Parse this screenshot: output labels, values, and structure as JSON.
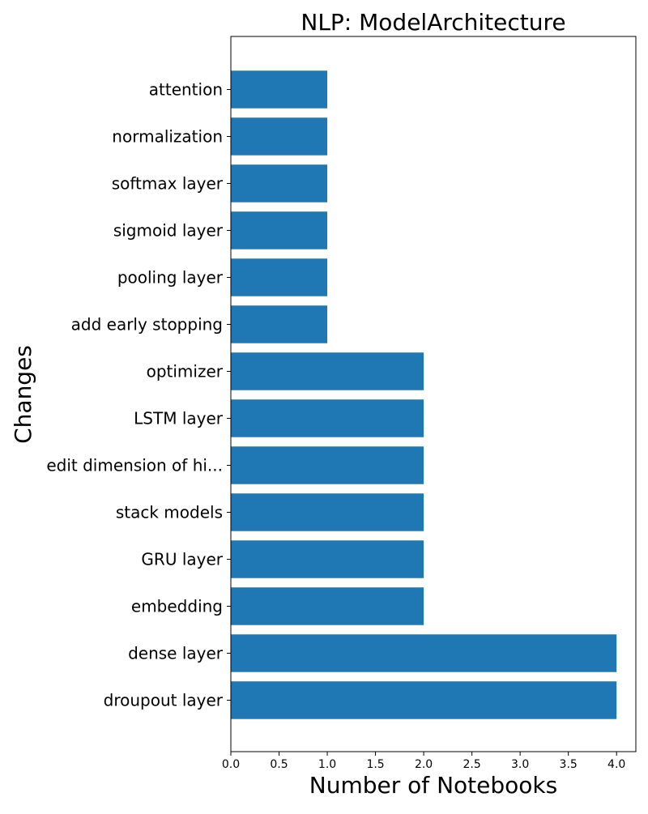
{
  "chart_data": {
    "type": "bar",
    "orientation": "horizontal",
    "title": "NLP: ModelArchitecture",
    "xlabel": "Number of Notebooks",
    "ylabel": "Changes",
    "categories": [
      "droupout layer",
      "dense layer",
      "embedding",
      "GRU layer",
      "stack models",
      "edit dimension of hi...",
      "LSTM layer",
      "optimizer",
      "add early stopping",
      "pooling layer",
      "sigmoid layer",
      "softmax layer",
      "normalization",
      "attention"
    ],
    "values": [
      4,
      4,
      2,
      2,
      2,
      2,
      2,
      2,
      1,
      1,
      1,
      1,
      1,
      1
    ],
    "xlim": [
      0,
      4.2
    ],
    "xticks": [
      "0.0",
      "0.5",
      "1.0",
      "1.5",
      "2.0",
      "2.5",
      "3.0",
      "3.5",
      "4.0"
    ],
    "grid": false,
    "legend": "none",
    "bar_color": "#1f77b4"
  }
}
